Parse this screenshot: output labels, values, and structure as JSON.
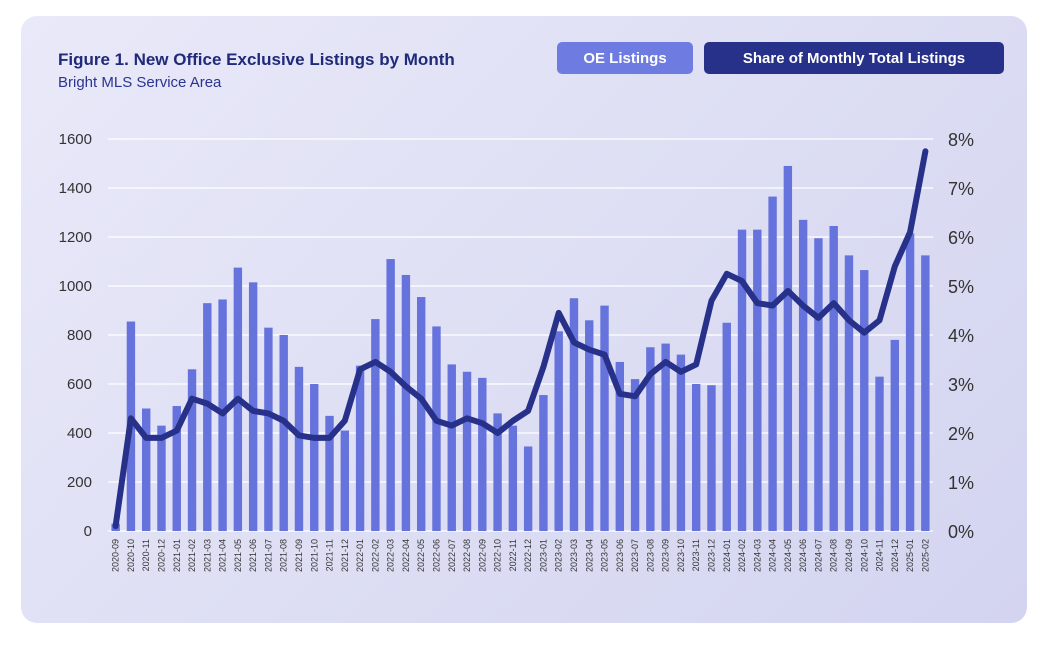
{
  "header": {
    "title": "Figure 1. New Office Exclusive Listings by Month",
    "subtitle": "Bright MLS Service Area"
  },
  "legend": {
    "oe_label": "OE Listings",
    "share_label": "Share of Monthly Total Listings"
  },
  "colors": {
    "bar": "#6673dc",
    "line": "#27318a",
    "legend_oe_bg": "#6e7be0",
    "legend_share_bg": "#27318a",
    "grid": "#ffffff"
  },
  "chart_data": {
    "type": "bar",
    "categories": [
      "2020-09",
      "2020-10",
      "2020-11",
      "2020-12",
      "2021-01",
      "2021-02",
      "2021-03",
      "2021-04",
      "2021-05",
      "2021-06",
      "2021-07",
      "2021-08",
      "2021-09",
      "2021-10",
      "2021-11",
      "2021-12",
      "2022-01",
      "2022-02",
      "2022-03",
      "2022-04",
      "2022-05",
      "2022-06",
      "2022-07",
      "2022-08",
      "2022-09",
      "2022-10",
      "2022-11",
      "2022-12",
      "2023-01",
      "2023-02",
      "2023-03",
      "2023-04",
      "2023-05",
      "2023-06",
      "2023-07",
      "2023-08",
      "2023-09",
      "2023-10",
      "2023-11",
      "2023-12",
      "2024-01",
      "2024-02",
      "2024-03",
      "2024-04",
      "2024-05",
      "2024-06",
      "2024-07",
      "2024-08",
      "2024-09",
      "2024-10",
      "2024-11",
      "2024-12",
      "2025-01",
      "2025-02"
    ],
    "series": [
      {
        "name": "OE Listings",
        "type": "bar",
        "axis": "left",
        "values": [
          30,
          855,
          500,
          430,
          510,
          660,
          930,
          945,
          1075,
          1015,
          830,
          800,
          670,
          600,
          470,
          410,
          675,
          865,
          1110,
          1045,
          955,
          835,
          680,
          650,
          625,
          480,
          430,
          345,
          555,
          815,
          950,
          860,
          920,
          690,
          620,
          750,
          765,
          720,
          600,
          595,
          850,
          1230,
          1230,
          1365,
          1490,
          1270,
          1195,
          1245,
          1125,
          1065,
          630,
          780,
          1215,
          1125
        ]
      },
      {
        "name": "Share of Monthly Total Listings",
        "type": "line",
        "axis": "right",
        "values": [
          0.1,
          2.3,
          1.9,
          1.9,
          2.05,
          2.7,
          2.6,
          2.4,
          2.7,
          2.45,
          2.4,
          2.25,
          1.95,
          1.9,
          1.9,
          2.25,
          3.3,
          3.45,
          3.25,
          2.95,
          2.7,
          2.25,
          2.15,
          2.3,
          2.2,
          2.0,
          2.25,
          2.45,
          3.35,
          4.45,
          3.85,
          3.7,
          3.6,
          2.8,
          2.75,
          3.2,
          3.45,
          3.25,
          3.4,
          4.7,
          5.25,
          5.1,
          4.65,
          4.6,
          4.9,
          4.6,
          4.35,
          4.65,
          4.3,
          4.05,
          4.3,
          5.4,
          6.1,
          7.75
        ]
      }
    ],
    "y_left": {
      "ylim": [
        0,
        1600
      ],
      "ticks": [
        0,
        200,
        400,
        600,
        800,
        1000,
        1200,
        1400,
        1600
      ]
    },
    "y_right": {
      "ylim": [
        0,
        8
      ],
      "ticks": [
        "0%",
        "1%",
        "2%",
        "3%",
        "4%",
        "5%",
        "6%",
        "7%",
        "8%"
      ]
    },
    "grid": true,
    "legend_position": "top-right"
  }
}
